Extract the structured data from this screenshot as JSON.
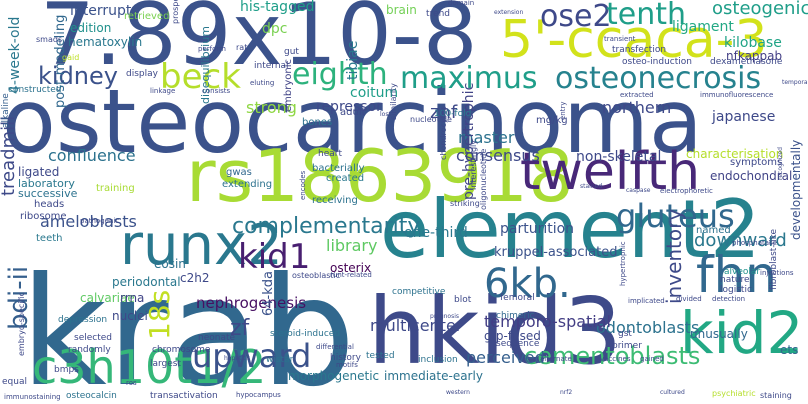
{
  "words": [
    {
      "text": "7.89x10-8",
      "color": "#3b528b"
    },
    {
      "text": "osteocarcinoma",
      "color": "#3b528b"
    },
    {
      "text": "krab",
      "color": "#31688e"
    },
    {
      "text": "rs1863918",
      "color": "#a8db34"
    },
    {
      "text": "element2",
      "color": "#26828e"
    },
    {
      "text": "hkid3",
      "color": "#3e4a89"
    },
    {
      "text": "5'-ccaca-3",
      "color": "#d2e21b"
    },
    {
      "text": "twelfth",
      "color": "#482878"
    },
    {
      "text": "maximus",
      "color": "#1f9e89"
    },
    {
      "text": "osteonecrosis",
      "color": "#26828e"
    },
    {
      "text": "runx2",
      "color": "#2a788e"
    },
    {
      "text": "kid2",
      "color": "#22a884"
    },
    {
      "text": "fhn",
      "color": "#31688e"
    },
    {
      "text": "c3h10t1/2",
      "color": "#35b779"
    },
    {
      "text": "beck",
      "color": "#b5de2b"
    },
    {
      "text": "eighth",
      "color": "#2db27d"
    },
    {
      "text": "gluteus",
      "color": "#31688e"
    },
    {
      "text": "kidney",
      "color": "#3b528b"
    },
    {
      "text": "ose2",
      "color": "#3e4989"
    },
    {
      "text": "tenth",
      "color": "#1f9e89"
    },
    {
      "text": "complementarity",
      "color": "#2a788e"
    },
    {
      "text": "kid1",
      "color": "#481f70"
    },
    {
      "text": "upward",
      "color": "#3b528b"
    },
    {
      "text": "6kb.",
      "color": "#31688e"
    },
    {
      "text": "cementoblasts",
      "color": "#3dbc74"
    },
    {
      "text": "bdi-ii",
      "color": "#355f8d"
    },
    {
      "text": "18s",
      "color": "#c2df23"
    },
    {
      "text": "confluence",
      "color": "#2c728e"
    },
    {
      "text": "downward",
      "color": "#2a788e"
    },
    {
      "text": "inventory",
      "color": "#3e4a89"
    },
    {
      "text": "odontoblasts",
      "color": "#2c728e"
    },
    {
      "text": "ameloblasts",
      "color": "#3b528b"
    },
    {
      "text": "multicenter",
      "color": "#3e4989"
    },
    {
      "text": "temporo-spatial",
      "color": "#433e85"
    },
    {
      "text": "perceived",
      "color": "#355f8d"
    },
    {
      "text": "nephrogenesis",
      "color": "#471063"
    },
    {
      "text": "library",
      "color": "#5ec962"
    },
    {
      "text": "one-third",
      "color": "#2a788e"
    },
    {
      "text": "parturition",
      "color": "#3b528b"
    },
    {
      "text": "kruppel-associated",
      "color": "#3b528b"
    },
    {
      "text": "non-skeletal",
      "color": "#3e4989"
    },
    {
      "text": "treadmill",
      "color": "#3e4a89"
    },
    {
      "text": "osteogenic",
      "color": "#1f9e89"
    },
    {
      "text": "kilobase",
      "color": "#20a486"
    },
    {
      "text": "nfkappab",
      "color": "#433e85"
    },
    {
      "text": "his-tagged",
      "color": "#1f9e89"
    },
    {
      "text": "interrupts",
      "color": "#3b528b"
    },
    {
      "text": "4-week-old",
      "color": "#2a788e"
    },
    {
      "text": "strong",
      "color": "#8fd744"
    },
    {
      "text": "znf",
      "color": "#3e4989"
    },
    {
      "text": "master",
      "color": "#2c728e"
    },
    {
      "text": "consensus",
      "color": "#3e4989"
    },
    {
      "text": "northern",
      "color": "#3e4989"
    },
    {
      "text": "tibiae",
      "color": "#2a788e"
    },
    {
      "text": "coitum",
      "color": "#1f9e89"
    },
    {
      "text": "repressor",
      "color": "#3e4989"
    },
    {
      "text": "dpc",
      "color": "#7ad151"
    },
    {
      "text": "ligament",
      "color": "#22a884"
    },
    {
      "text": "japanese",
      "color": "#3e4989"
    },
    {
      "text": "characterisation",
      "color": "#b5de2b"
    },
    {
      "text": "endochondral",
      "color": "#414487"
    },
    {
      "text": "developmentally",
      "color": "#3b528b"
    },
    {
      "text": "named",
      "color": "#2c728e"
    },
    {
      "text": "pre-hypertrophic",
      "color": "#414487"
    },
    {
      "text": "c2h2",
      "color": "#3e4989"
    },
    {
      "text": "periodontal",
      "color": "#2a788e"
    },
    {
      "text": "eosin",
      "color": "#2c728e"
    },
    {
      "text": "osterix",
      "color": "#440154"
    },
    {
      "text": "zf",
      "color": "#3e4989"
    },
    {
      "text": "64-kda",
      "color": "#3b528b"
    },
    {
      "text": "calvariae",
      "color": "#5ec962"
    },
    {
      "text": "rrna",
      "color": "#414487"
    },
    {
      "text": "nuclei",
      "color": "#3e4989"
    },
    {
      "text": "unusually",
      "color": "#31688e"
    },
    {
      "text": "ets",
      "color": "#31688e"
    },
    {
      "text": "morphogenetic",
      "color": "#2a788e"
    },
    {
      "text": "immediate-early",
      "color": "#2c728e"
    },
    {
      "text": "gfp-fused",
      "color": "#3e4989"
    },
    {
      "text": "hematoxylin",
      "color": "#2a788e"
    },
    {
      "text": "edition",
      "color": "#21918c"
    },
    {
      "text": "retrieved",
      "color": "#7ad151"
    },
    {
      "text": "ligated",
      "color": "#3e4989"
    },
    {
      "text": "laboratory",
      "color": "#2a788e"
    },
    {
      "text": "successive",
      "color": "#2c728e"
    },
    {
      "text": "heads",
      "color": "#3e4989"
    },
    {
      "text": "ribosome",
      "color": "#3e4989"
    },
    {
      "text": "teeth",
      "color": "#2a788e"
    },
    {
      "text": "post-modeling",
      "color": "#31688e"
    },
    {
      "text": "constructed",
      "color": "#2c728e"
    },
    {
      "text": "alkaline",
      "color": "#355f8d"
    },
    {
      "text": "disequilibrium",
      "color": "#2a788e"
    },
    {
      "text": "embryonic",
      "color": "#414487"
    },
    {
      "text": "bones",
      "color": "#2c728e"
    },
    {
      "text": "adult",
      "color": "#3e4989"
    },
    {
      "text": "brain",
      "color": "#73d056"
    },
    {
      "text": "trend",
      "color": "#3e4989"
    },
    {
      "text": "100-fold",
      "color": "#2a788e"
    },
    {
      "text": "bacterially",
      "color": "#2c728e"
    },
    {
      "text": "created",
      "color": "#2a788e"
    },
    {
      "text": "receiving",
      "color": "#2c728e"
    },
    {
      "text": "heart",
      "color": "#3e4989"
    },
    {
      "text": "mg/kg",
      "color": "#3e4989"
    },
    {
      "text": "extending",
      "color": "#2c728e"
    },
    {
      "text": "training",
      "color": "#a8db34"
    },
    {
      "text": "gwas",
      "color": "#31688e"
    },
    {
      "text": "display",
      "color": "#3e4989"
    },
    {
      "text": "internal",
      "color": "#3e4989"
    },
    {
      "text": "gut",
      "color": "#3e4989"
    },
    {
      "text": "symptoms",
      "color": "#3e4989"
    },
    {
      "text": "competitive",
      "color": "#2c728e"
    },
    {
      "text": "blot",
      "color": "#3e4989"
    },
    {
      "text": "femoral",
      "color": "#3e4989"
    },
    {
      "text": "history",
      "color": "#3e4989"
    },
    {
      "text": "tested",
      "color": "#2c728e"
    },
    {
      "text": "inclusion",
      "color": "#2c728e"
    },
    {
      "text": "sequence",
      "color": "#3e4989"
    },
    {
      "text": "chimeric",
      "color": "#31688e"
    },
    {
      "text": "primer",
      "color": "#3e4989"
    },
    {
      "text": "gst",
      "color": "#3e4989"
    },
    {
      "text": "alveolar",
      "color": "#21918c"
    },
    {
      "text": "nature",
      "color": "#3e4989"
    },
    {
      "text": "logistic",
      "color": "#3e4989"
    },
    {
      "text": "selected",
      "color": "#3e4989"
    },
    {
      "text": "randomly",
      "color": "#3e4989"
    },
    {
      "text": "largest",
      "color": "#3e4989"
    },
    {
      "text": "chromosome",
      "color": "#3e4989"
    },
    {
      "text": "neonate",
      "color": "#3e4989"
    },
    {
      "text": "wistar",
      "color": "#2c728e"
    },
    {
      "text": "steroid-induced",
      "color": "#2c728e"
    },
    {
      "text": "depression",
      "color": "#2c728e"
    },
    {
      "text": "bmps",
      "color": "#3e4989"
    },
    {
      "text": "equal",
      "color": "#3e4989"
    },
    {
      "text": "osteocalcin",
      "color": "#2c728e"
    },
    {
      "text": "transactivation",
      "color": "#3e4989"
    },
    {
      "text": "nucleotide",
      "color": "#3e4989"
    },
    {
      "text": "striking",
      "color": "#3e4989"
    },
    {
      "text": "interestingly",
      "color": "#3e4989"
    },
    {
      "text": "oligonucleotide",
      "color": "#3e4989"
    },
    {
      "text": "transfection",
      "color": "#3e4989"
    },
    {
      "text": "osteo-induction",
      "color": "#3e4989"
    },
    {
      "text": "dexamethasone",
      "color": "#3e4989"
    },
    {
      "text": "fibroblast-like",
      "color": "#3e4989"
    },
    {
      "text": "immunofluorescence",
      "color": "#3e4989"
    },
    {
      "text": "phosphatase",
      "color": "#3e4989"
    },
    {
      "text": "staining",
      "color": "#3e4989"
    },
    {
      "text": "detection",
      "color": "#3e4989"
    },
    {
      "text": "divided",
      "color": "#3e4989"
    },
    {
      "text": "chondrocytes",
      "color": "#3e4989"
    },
    {
      "text": "similarity",
      "color": "#3e4989"
    },
    {
      "text": "smads",
      "color": "#3e4989"
    },
    {
      "text": "gaid",
      "color": "#bddf26"
    },
    {
      "text": "prospective",
      "color": "#3e4989"
    },
    {
      "text": "perform",
      "color": "#3e4989"
    },
    {
      "text": "rat",
      "color": "#3e4989"
    },
    {
      "text": "consists",
      "color": "#3e4989"
    },
    {
      "text": "linkage",
      "color": "#3e4989"
    },
    {
      "text": "osteoblastic",
      "color": "#3e4989"
    },
    {
      "text": "runt-related",
      "color": "#3e4989"
    },
    {
      "text": "pathogenic",
      "color": "#3e4989"
    },
    {
      "text": "encodes",
      "color": "#3e4989"
    },
    {
      "text": "transient",
      "color": "#3e4989"
    },
    {
      "text": "electrophoretic",
      "color": "#3e4989"
    },
    {
      "text": "extracted",
      "color": "#3e4989"
    },
    {
      "text": "implicated",
      "color": "#3e4989"
    },
    {
      "text": "motifs",
      "color": "#3e4989"
    },
    {
      "text": "differential",
      "color": "#3e4989"
    },
    {
      "text": "alternate",
      "color": "#3e4989"
    },
    {
      "text": "vaccines",
      "color": "#3e4989"
    },
    {
      "text": "gained",
      "color": "#3e4989"
    },
    {
      "text": "hypertrophic",
      "color": "#3e4989"
    },
    {
      "text": "embryo-specific",
      "color": "#3e4989"
    },
    {
      "text": "immunostaining",
      "color": "#3e4989"
    },
    {
      "text": "ros",
      "color": "#3e4989"
    },
    {
      "text": "psychiatric",
      "color": "#b5de2b"
    },
    {
      "text": "domain",
      "color": "#3e4989"
    },
    {
      "text": "extension",
      "color": "#3e4989"
    },
    {
      "text": "temporal",
      "color": "#3e4989"
    },
    {
      "text": "injections",
      "color": "#3e4989"
    },
    {
      "text": "recognized",
      "color": "#3e4989"
    },
    {
      "text": "hepatitis",
      "color": "#3e4989"
    },
    {
      "text": "lost",
      "color": "#3e4989"
    },
    {
      "text": "eluting",
      "color": "#3e4989"
    },
    {
      "text": "entry",
      "color": "#3e4989"
    },
    {
      "text": "prognosis",
      "color": "#3e4989"
    },
    {
      "text": "hypocampus",
      "color": "#3e4989"
    },
    {
      "text": "western",
      "color": "#3e4989"
    },
    {
      "text": "nrf2",
      "color": "#3e4989"
    },
    {
      "text": "cultured",
      "color": "#3e4989"
    },
    {
      "text": "caspase",
      "color": "#3e4989"
    },
    {
      "text": "stained",
      "color": "#3e4989"
    }
  ]
}
